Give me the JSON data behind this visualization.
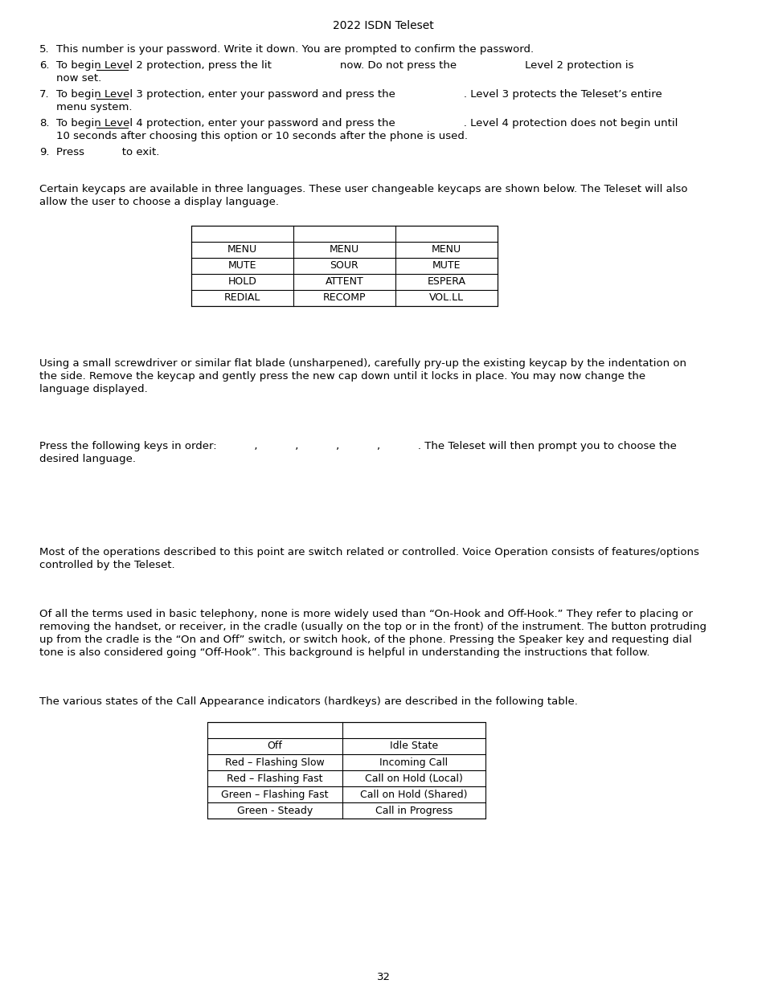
{
  "title": "2022 ISDN Teleset",
  "bg_color": "#ffffff",
  "page_number": "32",
  "fs": 9.5,
  "fs_table": 9.0,
  "lm": 49,
  "tm": 70,
  "keycaps_intro_line1": "Certain keycaps are available in three languages. These user changeable keycaps are shown below. The Teleset will also",
  "keycaps_intro_line2": "allow the user to choose a display language.",
  "keycaps_table_rows": [
    [
      "MENU",
      "MENU",
      "MENU"
    ],
    [
      "MUTE",
      "SOUR",
      "MUTE"
    ],
    [
      "HOLD",
      "ATTENT",
      "ESPERA"
    ],
    [
      "REDIAL",
      "RECOMP",
      "VOL.LL"
    ]
  ],
  "screwdriver_line1": "Using a small screwdriver or similar flat blade (unsharpened), carefully pry-up the existing keycap by the indentation on",
  "screwdriver_line2": "the side. Remove the keycap and gently press the new cap down until it locks in place. You may now change the",
  "screwdriver_line3": "language displayed.",
  "press_keys_line1": "Press the following keys in order:           ,           ,           ,           ,           . The Teleset will then prompt you to choose the",
  "press_keys_line2": "desired language.",
  "voice_op_line1": "Most of the operations described to this point are switch related or controlled. Voice Operation consists of features/options",
  "voice_op_line2": "controlled by the Teleset.",
  "terms_line1": "Of all the terms used in basic telephony, none is more widely used than “On-Hook and Off-Hook.” They refer to placing or",
  "terms_line2": "removing the handset, or receiver, in the cradle (usually on the top or in the front) of the instrument. The button protruding",
  "terms_line3": "up from the cradle is the “On and Off” switch, or switch hook, of the phone. Pressing the Speaker key and requesting dial",
  "terms_line4": "tone is also considered going “Off-Hook”. This background is helpful in understanding the instructions that follow.",
  "call_intro": "The various states of the Call Appearance indicators (hardkeys) are described in the following table.",
  "call_table_rows": [
    [
      "Off",
      "Idle State"
    ],
    [
      "Red – Flashing Slow",
      "Incoming Call"
    ],
    [
      "Red – Flashing Fast",
      "Call on Hold (Local)"
    ],
    [
      "Green – Flashing Fast",
      "Call on Hold (Shared)"
    ],
    [
      "Green - Steady",
      "Call in Progress"
    ]
  ]
}
